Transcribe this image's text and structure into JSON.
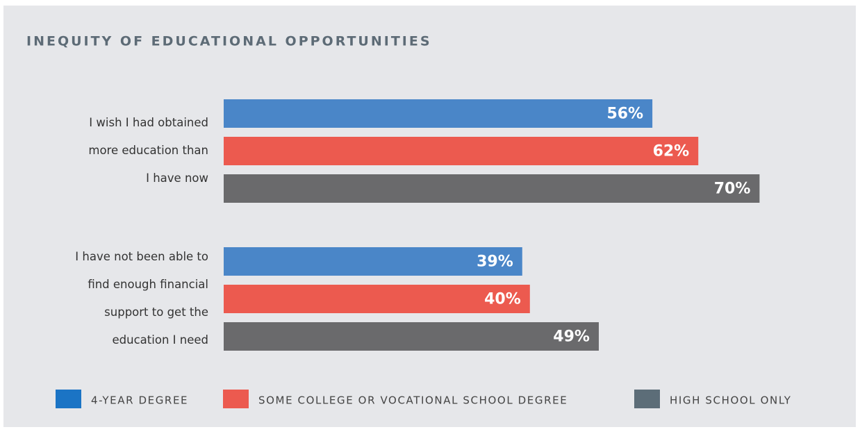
{
  "chart_data": {
    "type": "bar",
    "orientation": "horizontal",
    "title": "INEQUITY OF EDUCATIONAL OPPORTUNITIES",
    "categories": [
      [
        "I wish I had obtained",
        "more education than",
        "I have now"
      ],
      [
        "I have not been able to",
        "find enough financial",
        "support to get the",
        "education I need"
      ]
    ],
    "series": [
      {
        "name": "4-YEAR DEGREE",
        "color": "#4a86c8",
        "legend_color": "#1b74c5",
        "values": [
          56,
          39
        ],
        "value_labels": [
          "56%",
          "39%"
        ]
      },
      {
        "name": "SOME COLLEGE OR VOCATIONAL SCHOOL DEGREE",
        "color": "#ec5a4f",
        "legend_color": "#ec5a4f",
        "values": [
          62,
          40
        ],
        "value_labels": [
          "62%",
          "40%"
        ]
      },
      {
        "name": "HIGH SCHOOL ONLY",
        "color": "#6a6a6c",
        "legend_color": "#5c6d78",
        "values": [
          70,
          49
        ],
        "value_labels": [
          "70%",
          "49%"
        ]
      }
    ],
    "legend": "bottom"
  }
}
